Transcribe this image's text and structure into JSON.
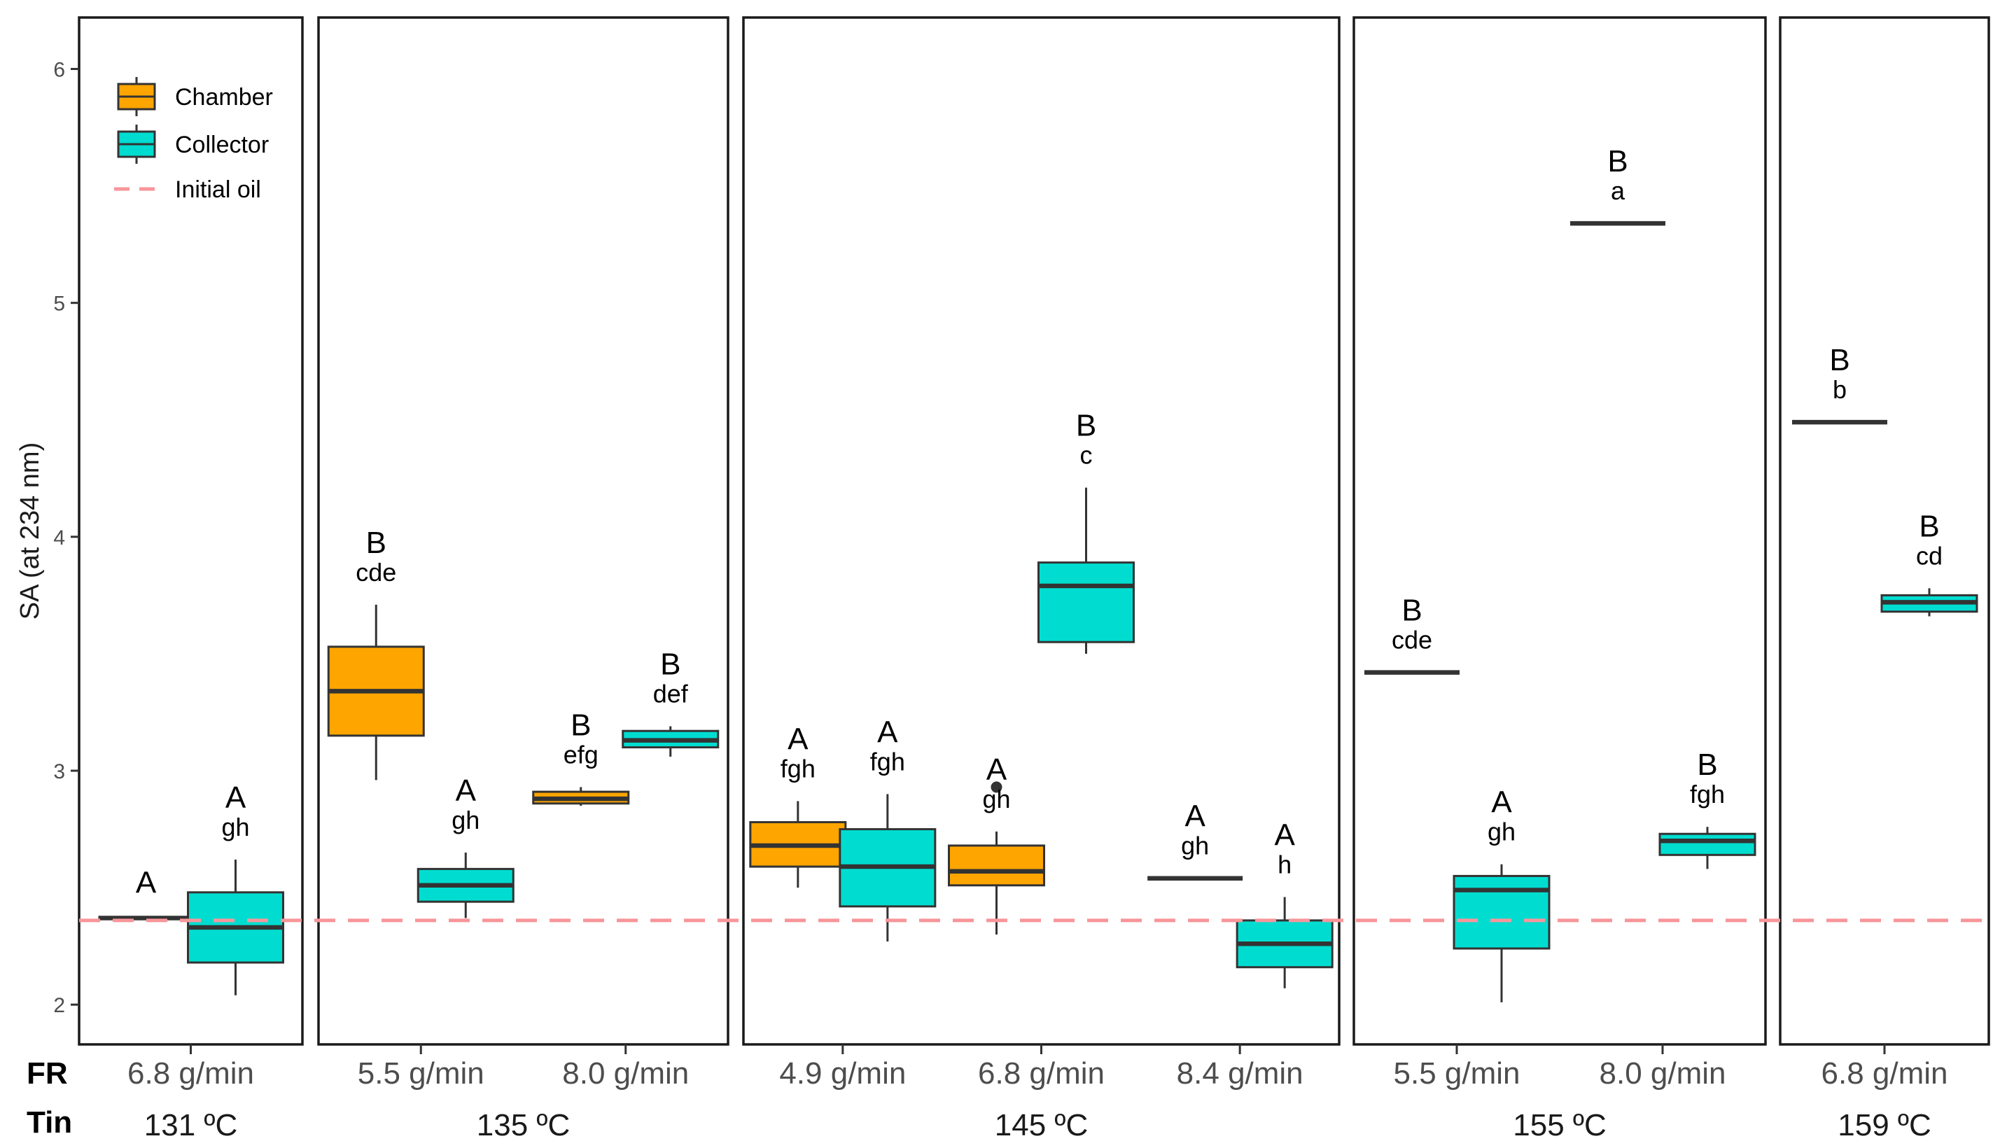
{
  "chart_data": {
    "type": "box",
    "ylabel": "SA (at 234 nm)",
    "ylim": [
      1.83,
      6.22
    ],
    "yticks": [
      2,
      3,
      4,
      5,
      6
    ],
    "grid": false,
    "legend_position": "top-left",
    "row_labels": {
      "fr": "FR",
      "tin": "Tin"
    },
    "legend": [
      {
        "name": "Chamber",
        "kind": "box",
        "color": "#FFA500"
      },
      {
        "name": "Collector",
        "kind": "box",
        "color": "#00DDD0"
      },
      {
        "name": "Initial oil",
        "kind": "dashed-line",
        "color": "#F8969A"
      }
    ],
    "reference_line": {
      "name": "Initial oil",
      "value": 2.36
    },
    "panels": [
      {
        "tin": "131 ºC",
        "groups": [
          {
            "fr": "6.8 g/min",
            "series": [
              {
                "name": "Chamber",
                "whisker_low": 2.37,
                "q1": 2.37,
                "median": 2.37,
                "q3": 2.37,
                "whisker_high": 2.37,
                "outliers": [],
                "upper": "A",
                "lower": ""
              },
              {
                "name": "Collector",
                "whisker_low": 2.04,
                "q1": 2.18,
                "median": 2.33,
                "q3": 2.48,
                "whisker_high": 2.62,
                "outliers": [],
                "upper": "A",
                "lower": "gh"
              }
            ]
          }
        ]
      },
      {
        "tin": "135 ºC",
        "groups": [
          {
            "fr": "5.5 g/min",
            "series": [
              {
                "name": "Chamber",
                "whisker_low": 2.96,
                "q1": 3.15,
                "median": 3.34,
                "q3": 3.53,
                "whisker_high": 3.71,
                "outliers": [],
                "upper": "B",
                "lower": "cde"
              },
              {
                "name": "Collector",
                "whisker_low": 2.37,
                "q1": 2.44,
                "median": 2.51,
                "q3": 2.58,
                "whisker_high": 2.65,
                "outliers": [],
                "upper": "A",
                "lower": "gh"
              }
            ]
          },
          {
            "fr": "8.0 g/min",
            "series": [
              {
                "name": "Chamber",
                "whisker_low": 2.85,
                "q1": 2.86,
                "median": 2.88,
                "q3": 2.91,
                "whisker_high": 2.93,
                "outliers": [],
                "upper": "B",
                "lower": "efg"
              },
              {
                "name": "Collector",
                "whisker_low": 3.06,
                "q1": 3.1,
                "median": 3.13,
                "q3": 3.17,
                "whisker_high": 3.19,
                "outliers": [],
                "upper": "B",
                "lower": "def"
              }
            ]
          }
        ]
      },
      {
        "tin": "145 ºC",
        "groups": [
          {
            "fr": "4.9 g/min",
            "series": [
              {
                "name": "Chamber",
                "whisker_low": 2.5,
                "q1": 2.59,
                "median": 2.68,
                "q3": 2.78,
                "whisker_high": 2.87,
                "outliers": [],
                "upper": "A",
                "lower": "fgh"
              },
              {
                "name": "Collector",
                "whisker_low": 2.27,
                "q1": 2.42,
                "median": 2.59,
                "q3": 2.75,
                "whisker_high": 2.9,
                "outliers": [],
                "upper": "A",
                "lower": "fgh"
              }
            ]
          },
          {
            "fr": "6.8 g/min",
            "series": [
              {
                "name": "Chamber",
                "whisker_low": 2.3,
                "q1": 2.51,
                "median": 2.57,
                "q3": 2.68,
                "whisker_high": 2.74,
                "outliers": [
                  2.93
                ],
                "upper": "A",
                "lower": "gh"
              },
              {
                "name": "Collector",
                "whisker_low": 3.5,
                "q1": 3.55,
                "median": 3.79,
                "q3": 3.89,
                "whisker_high": 4.21,
                "outliers": [],
                "upper": "B",
                "lower": "c"
              }
            ]
          },
          {
            "fr": "8.4 g/min",
            "series": [
              {
                "name": "Chamber",
                "whisker_low": 2.54,
                "q1": 2.54,
                "median": 2.54,
                "q3": 2.54,
                "whisker_high": 2.54,
                "outliers": [],
                "upper": "A",
                "lower": "gh"
              },
              {
                "name": "Collector",
                "whisker_low": 2.07,
                "q1": 2.16,
                "median": 2.26,
                "q3": 2.36,
                "whisker_high": 2.46,
                "outliers": [],
                "upper": "A",
                "lower": "h"
              }
            ]
          }
        ]
      },
      {
        "tin": "155 ºC",
        "groups": [
          {
            "fr": "5.5 g/min",
            "series": [
              {
                "name": "Chamber",
                "whisker_low": 3.42,
                "q1": 3.42,
                "median": 3.42,
                "q3": 3.42,
                "whisker_high": 3.42,
                "outliers": [],
                "upper": "B",
                "lower": "cde"
              },
              {
                "name": "Collector",
                "whisker_low": 2.01,
                "q1": 2.24,
                "median": 2.49,
                "q3": 2.55,
                "whisker_high": 2.6,
                "outliers": [],
                "upper": "A",
                "lower": "gh"
              }
            ]
          },
          {
            "fr": "8.0 g/min",
            "series": [
              {
                "name": "Chamber",
                "whisker_low": 5.34,
                "q1": 5.34,
                "median": 5.34,
                "q3": 5.34,
                "whisker_high": 5.34,
                "outliers": [],
                "upper": "B",
                "lower": "a"
              },
              {
                "name": "Collector",
                "whisker_low": 2.58,
                "q1": 2.64,
                "median": 2.7,
                "q3": 2.73,
                "whisker_high": 2.76,
                "outliers": [],
                "upper": "B",
                "lower": "fgh"
              }
            ]
          }
        ]
      },
      {
        "tin": "159 ºC",
        "groups": [
          {
            "fr": "6.8 g/min",
            "series": [
              {
                "name": "Chamber",
                "whisker_low": 4.49,
                "q1": 4.49,
                "median": 4.49,
                "q3": 4.49,
                "whisker_high": 4.49,
                "outliers": [],
                "upper": "B",
                "lower": "b"
              },
              {
                "name": "Collector",
                "whisker_low": 3.66,
                "q1": 3.68,
                "median": 3.72,
                "q3": 3.75,
                "whisker_high": 3.78,
                "outliers": [],
                "upper": "B",
                "lower": "cd"
              }
            ]
          }
        ]
      }
    ]
  }
}
